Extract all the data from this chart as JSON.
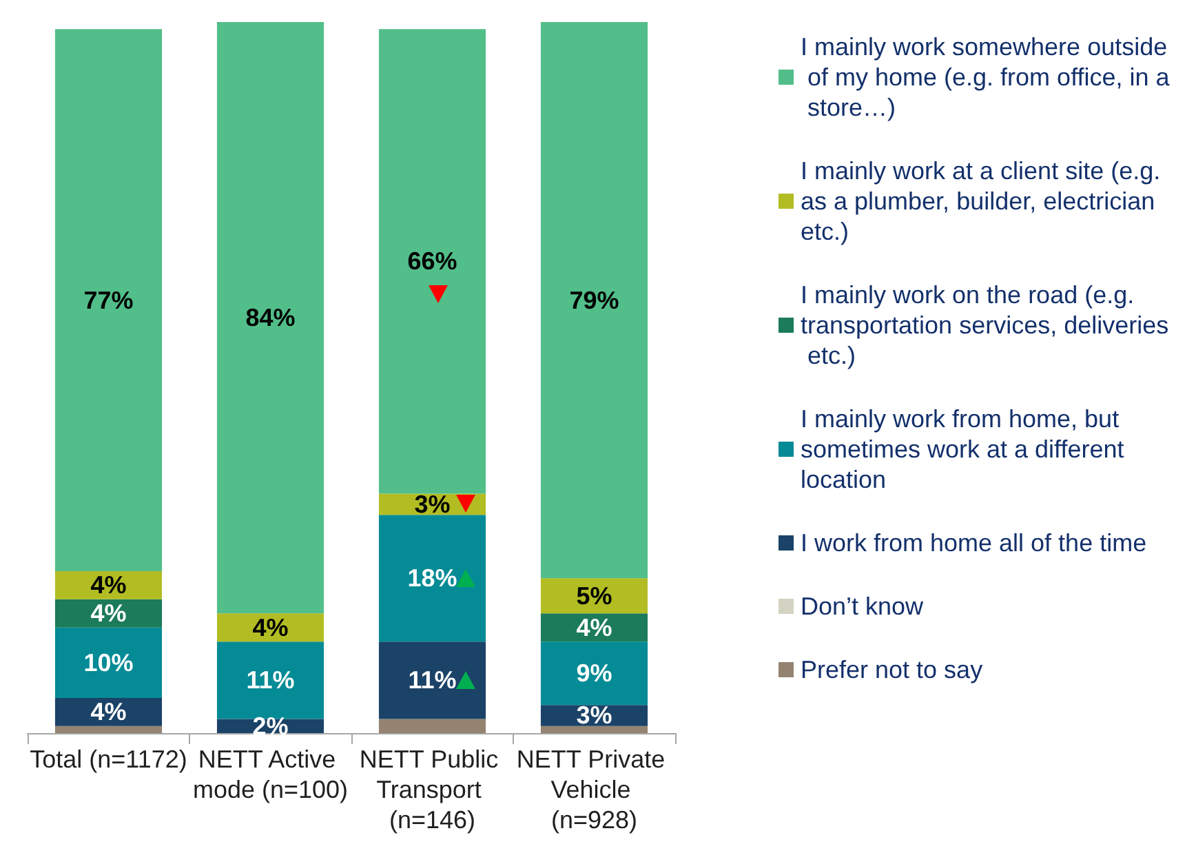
{
  "chart_data": {
    "type": "bar",
    "stacked": true,
    "categories": [
      "Total (n=1172)",
      "NETT Active mode (n=100)",
      "NETT Public Transport (n=146)",
      "NETT Private Vehicle (n=928)"
    ],
    "series": [
      {
        "name": "Prefer not to say",
        "color": "#948371",
        "values": [
          1,
          0,
          2,
          1
        ],
        "value_labels": [
          null,
          null,
          null,
          null
        ]
      },
      {
        "name": "Don’t know",
        "color": "#d3d3c3",
        "values": [
          0,
          0,
          0,
          0
        ],
        "value_labels": [
          null,
          null,
          null,
          null
        ]
      },
      {
        "name": "I work from home all of the time",
        "color": "#1b4267",
        "values": [
          4,
          2,
          11,
          3
        ],
        "value_labels": [
          "4%",
          "2%",
          "11%",
          "3%"
        ]
      },
      {
        "name": "I mainly work from home, but sometimes work at a different location",
        "color": "#048b96",
        "values": [
          10,
          11,
          18,
          9
        ],
        "value_labels": [
          "10%",
          "11%",
          "18%",
          "9%"
        ]
      },
      {
        "name": "I mainly work on the road (e.g. transportation services, deliveries etc.)",
        "color": "#1b7b5a",
        "values": [
          4,
          0,
          0,
          4
        ],
        "value_labels": [
          "4%",
          null,
          null,
          "4%"
        ]
      },
      {
        "name": "I mainly work at a client site (e.g. as a plumber, builder, electrician etc.)",
        "color": "#b2bd23",
        "values": [
          4,
          4,
          3,
          5
        ],
        "value_labels": [
          "4%",
          "4%",
          "3%",
          "5%"
        ]
      },
      {
        "name": "I mainly work somewhere outside of my home (e.g. from office, in a store…)",
        "color": "#52be89",
        "values": [
          77,
          84,
          66,
          79
        ],
        "value_labels": [
          "77%",
          "84%",
          "66%",
          "79%"
        ]
      }
    ],
    "legend": "right"
  }
}
